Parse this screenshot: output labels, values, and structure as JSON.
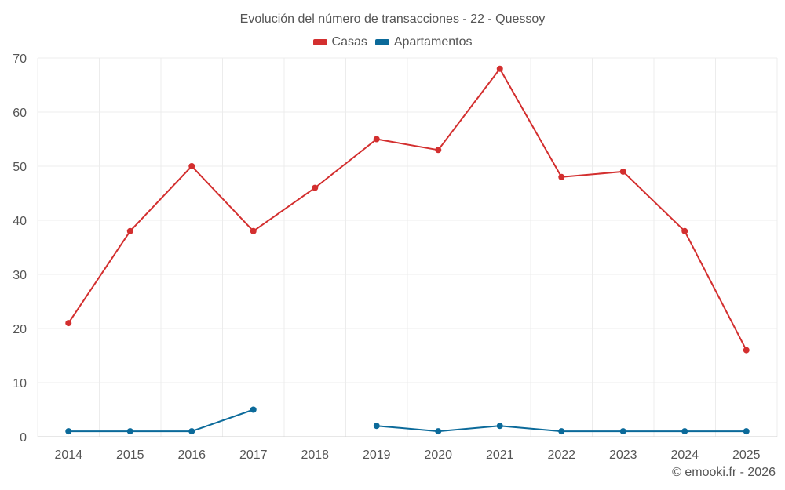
{
  "chart_data": {
    "type": "line",
    "title": "Evolución del número de transacciones - 22 - Quessoy",
    "xlabel": "",
    "ylabel": "",
    "ylim": [
      0,
      70
    ],
    "yticks": [
      0,
      10,
      20,
      30,
      40,
      50,
      60,
      70
    ],
    "categories": [
      "2014",
      "2015",
      "2016",
      "2017",
      "2018",
      "2019",
      "2020",
      "2021",
      "2022",
      "2023",
      "2024",
      "2025"
    ],
    "grid": true,
    "legend_position": "top-center",
    "series": [
      {
        "name": "Casas",
        "color": "#d32f2f",
        "values": [
          21,
          38,
          50,
          38,
          46,
          55,
          53,
          68,
          48,
          49,
          38,
          16
        ]
      },
      {
        "name": "Apartamentos",
        "color": "#0b6a9a",
        "values": [
          1,
          1,
          1,
          5,
          null,
          2,
          1,
          2,
          1,
          1,
          1,
          1
        ]
      }
    ]
  },
  "credit": "© emooki.fr - 2026"
}
